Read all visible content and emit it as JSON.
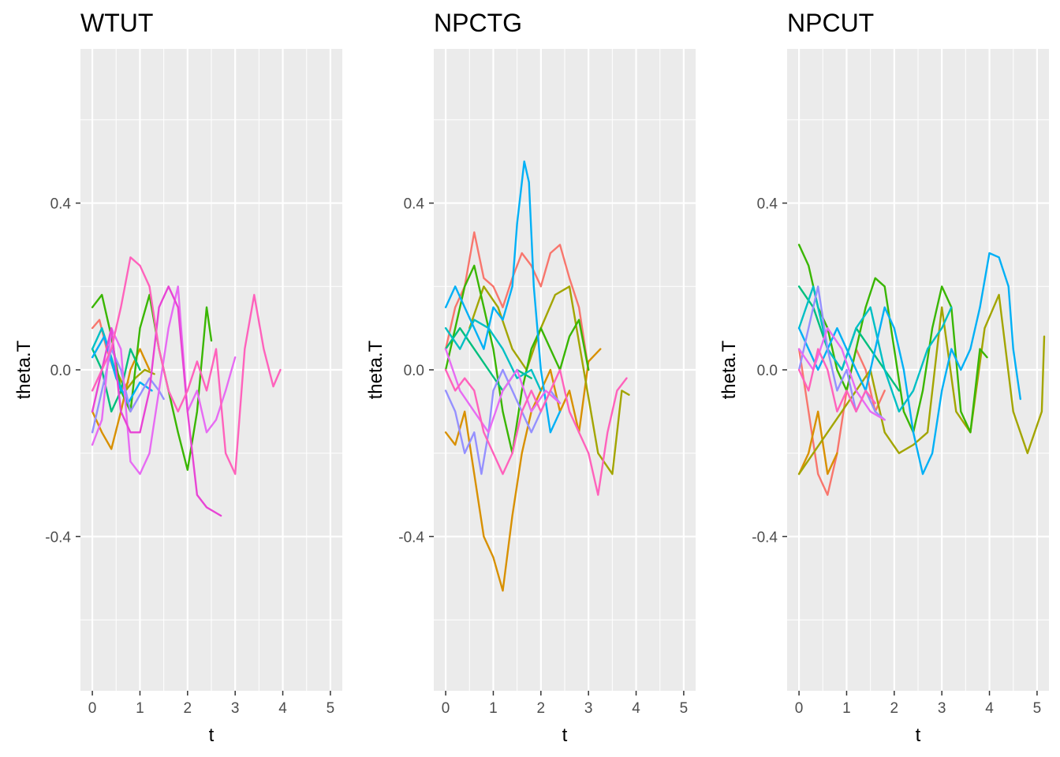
{
  "chart_data": [
    {
      "type": "line",
      "title": "WTUT",
      "xlabel": "t",
      "ylabel": "theta.T",
      "xlim": [
        -0.25,
        5.25
      ],
      "ylim": [
        -0.77,
        0.77
      ],
      "xticks": [
        0,
        1,
        2,
        3,
        4,
        5
      ],
      "yticks": [
        0.4,
        0.0,
        -0.4
      ],
      "ytick_labels": [
        "0.4",
        "0.0",
        "-0.4"
      ],
      "grid": true,
      "series": [
        {
          "color": "#F8766D",
          "x": [
            0,
            0.15,
            0.3,
            0.45,
            0.6,
            0.75
          ],
          "y": [
            0.1,
            0.12,
            0.05,
            0.0,
            -0.05,
            -0.03
          ]
        },
        {
          "color": "#D89000",
          "x": [
            0,
            0.2,
            0.4,
            0.6,
            0.8,
            1.0,
            1.2
          ],
          "y": [
            -0.1,
            -0.15,
            -0.19,
            -0.1,
            0.0,
            0.05,
            0.0
          ]
        },
        {
          "color": "#A3A500",
          "x": [
            0.5,
            0.7,
            0.9,
            1.1,
            1.3
          ],
          "y": [
            0.0,
            -0.05,
            -0.02,
            0.0,
            -0.01
          ]
        },
        {
          "color": "#39B600",
          "x": [
            0,
            0.2,
            0.4,
            0.6,
            0.8,
            1.0,
            1.2,
            1.4,
            1.6,
            1.8,
            2.0,
            2.2,
            2.4,
            2.5
          ],
          "y": [
            0.15,
            0.18,
            0.08,
            -0.05,
            -0.1,
            0.1,
            0.18,
            0.05,
            -0.05,
            -0.15,
            -0.24,
            -0.1,
            0.15,
            0.07
          ]
        },
        {
          "color": "#00BF7D",
          "x": [
            0,
            0.2,
            0.4,
            0.6,
            0.8,
            1.0
          ],
          "y": [
            0.05,
            0.0,
            -0.1,
            -0.05,
            0.05,
            0.0
          ]
        },
        {
          "color": "#00BFC4",
          "x": [
            0,
            0.2,
            0.4,
            0.6
          ],
          "y": [
            0.05,
            0.1,
            0.03,
            -0.05
          ]
        },
        {
          "color": "#00B0F6",
          "x": [
            0,
            0.25,
            0.5,
            0.75,
            1.0,
            1.25
          ],
          "y": [
            0.03,
            0.08,
            -0.02,
            -0.08,
            -0.03,
            -0.05
          ]
        },
        {
          "color": "#9590FF",
          "x": [
            0,
            0.2,
            0.4,
            0.6,
            0.8,
            1.0,
            1.2,
            1.4,
            1.5
          ],
          "y": [
            -0.15,
            -0.05,
            0.05,
            0.0,
            -0.1,
            -0.06,
            -0.02,
            -0.05,
            -0.07
          ]
        },
        {
          "color": "#E76BF3",
          "x": [
            0,
            0.2,
            0.4,
            0.6,
            0.8,
            1.0,
            1.2,
            1.4,
            1.6,
            1.8,
            2.0,
            2.2,
            2.4,
            2.6,
            2.8,
            3.0
          ],
          "y": [
            -0.18,
            -0.12,
            0.1,
            0.05,
            -0.22,
            -0.25,
            -0.2,
            -0.05,
            0.1,
            0.2,
            -0.1,
            -0.05,
            -0.15,
            -0.12,
            -0.05,
            0.03
          ]
        },
        {
          "color": "#E844D5",
          "x": [
            0,
            0.2,
            0.4,
            0.6,
            0.8,
            1.0,
            1.2,
            1.4,
            1.6,
            1.8,
            2.0,
            2.2,
            2.4,
            2.7
          ],
          "y": [
            -0.1,
            0.0,
            0.1,
            -0.1,
            -0.15,
            -0.15,
            -0.05,
            0.15,
            0.2,
            0.15,
            -0.1,
            -0.3,
            -0.33,
            -0.35
          ]
        },
        {
          "color": "#FF62BC",
          "x": [
            0,
            0.2,
            0.4,
            0.6,
            0.8,
            1.0,
            1.2,
            1.4,
            1.6,
            1.8,
            2.0,
            2.2,
            2.4,
            2.6,
            2.8,
            3.0,
            3.2,
            3.4,
            3.6,
            3.8,
            3.95
          ],
          "y": [
            -0.05,
            0.0,
            0.05,
            0.15,
            0.27,
            0.25,
            0.2,
            0.05,
            -0.05,
            -0.1,
            -0.05,
            0.02,
            -0.05,
            0.05,
            -0.2,
            -0.25,
            0.05,
            0.18,
            0.05,
            -0.04,
            0.0
          ]
        }
      ]
    },
    {
      "type": "line",
      "title": "NPCTG",
      "xlabel": "t",
      "ylabel": "theta.T",
      "xlim": [
        -0.25,
        5.25
      ],
      "ylim": [
        -0.77,
        0.77
      ],
      "xticks": [
        0,
        1,
        2,
        3,
        4,
        5
      ],
      "yticks": [
        0.4,
        0.0,
        -0.4
      ],
      "ytick_labels": [
        "0.4",
        "0.0",
        "-0.4"
      ],
      "grid": true,
      "series": [
        {
          "color": "#F8766D",
          "x": [
            0,
            0.2,
            0.4,
            0.6,
            0.8,
            1.0,
            1.2,
            1.4,
            1.6,
            1.8,
            2.0,
            2.2,
            2.4,
            2.6,
            2.8,
            3.0
          ],
          "y": [
            0.05,
            0.15,
            0.2,
            0.33,
            0.22,
            0.2,
            0.15,
            0.22,
            0.28,
            0.25,
            0.2,
            0.28,
            0.3,
            0.22,
            0.15,
            0.0
          ]
        },
        {
          "color": "#D89000",
          "x": [
            0,
            0.2,
            0.4,
            0.6,
            0.8,
            1.0,
            1.2,
            1.4,
            1.6,
            1.8,
            2.0,
            2.2,
            2.4,
            2.6,
            2.8,
            3.0,
            3.25
          ],
          "y": [
            -0.15,
            -0.18,
            -0.1,
            -0.25,
            -0.4,
            -0.45,
            -0.53,
            -0.35,
            -0.2,
            -0.1,
            -0.05,
            0.0,
            -0.1,
            -0.05,
            -0.15,
            0.02,
            0.05
          ]
        },
        {
          "color": "#A3A500",
          "x": [
            0.5,
            0.8,
            1.1,
            1.4,
            1.7,
            2.0,
            2.3,
            2.6,
            2.9,
            3.2,
            3.5,
            3.7,
            3.85
          ],
          "y": [
            0.1,
            0.2,
            0.15,
            0.05,
            0.0,
            0.1,
            0.18,
            0.2,
            0.0,
            -0.2,
            -0.25,
            -0.05,
            -0.06
          ]
        },
        {
          "color": "#39B600",
          "x": [
            0,
            0.2,
            0.4,
            0.6,
            0.8,
            1.0,
            1.2,
            1.4,
            1.6,
            1.8,
            2.0,
            2.2,
            2.4,
            2.6,
            2.8,
            3.0
          ],
          "y": [
            0.0,
            0.1,
            0.2,
            0.25,
            0.15,
            0.05,
            -0.1,
            -0.2,
            -0.05,
            0.05,
            0.1,
            0.05,
            0.0,
            0.08,
            0.12,
            0.0
          ]
        },
        {
          "color": "#00BF7D",
          "x": [
            0,
            0.3,
            0.6,
            0.9,
            1.2,
            1.5,
            1.8
          ],
          "y": [
            0.05,
            0.1,
            0.05,
            0.0,
            -0.05,
            0.0,
            -0.02
          ]
        },
        {
          "color": "#00BFC4",
          "x": [
            0,
            0.3,
            0.6,
            0.9,
            1.2,
            1.5,
            1.8,
            2.0
          ],
          "y": [
            0.1,
            0.05,
            0.12,
            0.1,
            0.05,
            -0.02,
            0.0,
            -0.05
          ]
        },
        {
          "color": "#00B0F6",
          "x": [
            0,
            0.2,
            0.4,
            0.6,
            0.8,
            1.0,
            1.2,
            1.4,
            1.5,
            1.6,
            1.65,
            1.75,
            1.85,
            2.0,
            2.2,
            2.4
          ],
          "y": [
            0.15,
            0.2,
            0.15,
            0.1,
            0.05,
            0.15,
            0.12,
            0.2,
            0.35,
            0.45,
            0.5,
            0.45,
            0.2,
            0.0,
            -0.15,
            -0.1
          ]
        },
        {
          "color": "#9590FF",
          "x": [
            0,
            0.2,
            0.4,
            0.6,
            0.75,
            0.9,
            1.0,
            1.2,
            1.4,
            1.6,
            1.8,
            2.0,
            2.2,
            2.4
          ],
          "y": [
            -0.05,
            -0.1,
            -0.2,
            -0.15,
            -0.25,
            -0.15,
            -0.05,
            0.0,
            -0.05,
            -0.1,
            -0.15,
            -0.1,
            -0.05,
            -0.08
          ]
        },
        {
          "color": "#E76BF3",
          "x": [
            0,
            0.3,
            0.6,
            0.9,
            1.2,
            1.5,
            1.8,
            2.1,
            2.4
          ],
          "y": [
            0.05,
            -0.05,
            -0.1,
            -0.15,
            -0.05,
            0.0,
            -0.1,
            -0.05,
            -0.08
          ]
        },
        {
          "color": "#FF62BC",
          "x": [
            0,
            0.2,
            0.4,
            0.6,
            0.8,
            1.0,
            1.2,
            1.4,
            1.6,
            1.8,
            2.0,
            2.2,
            2.4,
            2.6,
            2.8,
            3.0,
            3.2,
            3.4,
            3.6,
            3.8
          ],
          "y": [
            0.0,
            -0.05,
            -0.02,
            -0.05,
            -0.15,
            -0.2,
            -0.25,
            -0.2,
            -0.1,
            -0.05,
            -0.1,
            -0.05,
            0.0,
            -0.1,
            -0.15,
            -0.2,
            -0.3,
            -0.15,
            -0.05,
            -0.02
          ]
        }
      ]
    },
    {
      "type": "line",
      "title": "NPCUT",
      "xlabel": "t",
      "ylabel": "theta.T",
      "xlim": [
        -0.25,
        5.25
      ],
      "ylim": [
        -0.77,
        0.77
      ],
      "xticks": [
        0,
        1,
        2,
        3,
        4,
        5
      ],
      "yticks": [
        0.4,
        0.0,
        -0.4
      ],
      "ytick_labels": [
        "0.4",
        "0.0",
        "-0.4"
      ],
      "grid": true,
      "series": [
        {
          "color": "#F8766D",
          "x": [
            0,
            0.2,
            0.4,
            0.6,
            0.8,
            1.0,
            1.2,
            1.4,
            1.6,
            1.8
          ],
          "y": [
            0.05,
            -0.1,
            -0.25,
            -0.3,
            -0.2,
            -0.05,
            0.05,
            0.0,
            -0.1,
            -0.05
          ]
        },
        {
          "color": "#D89000",
          "x": [
            0,
            0.2,
            0.4,
            0.6,
            0.8
          ],
          "y": [
            -0.25,
            -0.2,
            -0.1,
            -0.25,
            -0.2
          ]
        },
        {
          "color": "#A3A500",
          "x": [
            0,
            0.3,
            0.6,
            0.9,
            1.2,
            1.5,
            1.8,
            2.1,
            2.4,
            2.7,
            3.0,
            3.3,
            3.6,
            3.9,
            4.2,
            4.5,
            4.8,
            5.1,
            5.15
          ],
          "y": [
            -0.25,
            -0.2,
            -0.15,
            -0.1,
            -0.05,
            0.0,
            -0.15,
            -0.2,
            -0.18,
            -0.15,
            0.15,
            -0.1,
            -0.15,
            0.1,
            0.18,
            -0.1,
            -0.2,
            -0.1,
            0.08
          ]
        },
        {
          "color": "#39B600",
          "x": [
            0,
            0.2,
            0.4,
            0.6,
            0.8,
            1.0,
            1.2,
            1.4,
            1.6,
            1.8,
            2.0,
            2.2,
            2.4,
            2.6,
            2.8,
            3.0,
            3.2,
            3.4,
            3.6,
            3.8,
            3.95
          ],
          "y": [
            0.3,
            0.25,
            0.15,
            0.1,
            0.0,
            -0.05,
            0.05,
            0.15,
            0.22,
            0.2,
            0.05,
            -0.1,
            -0.15,
            -0.05,
            0.1,
            0.2,
            0.15,
            -0.1,
            -0.15,
            0.05,
            0.03
          ]
        },
        {
          "color": "#00BF7D",
          "x": [
            0,
            0.3,
            0.6,
            0.9,
            1.2,
            1.5,
            1.8,
            2.1
          ],
          "y": [
            0.2,
            0.15,
            0.05,
            0.0,
            0.1,
            0.05,
            0.0,
            -0.05
          ]
        },
        {
          "color": "#00BFC4",
          "x": [
            0,
            0.3,
            0.6,
            0.9,
            1.2,
            1.5,
            1.8,
            2.1,
            2.4,
            2.7,
            3.0,
            3.2
          ],
          "y": [
            0.1,
            0.2,
            0.05,
            0.0,
            0.1,
            0.15,
            0.0,
            -0.1,
            -0.05,
            0.05,
            0.1,
            0.15
          ]
        },
        {
          "color": "#00B0F6",
          "x": [
            0,
            0.2,
            0.4,
            0.6,
            0.8,
            1.0,
            1.2,
            1.4,
            1.6,
            1.8,
            2.0,
            2.2,
            2.4,
            2.6,
            2.8,
            3.0,
            3.2,
            3.4,
            3.6,
            3.8,
            4.0,
            4.2,
            4.4,
            4.5,
            4.65
          ],
          "y": [
            0.1,
            0.05,
            0.0,
            0.05,
            0.1,
            0.05,
            0.0,
            -0.05,
            0.05,
            0.15,
            0.1,
            0.0,
            -0.15,
            -0.25,
            -0.2,
            -0.05,
            0.05,
            0.0,
            0.05,
            0.15,
            0.28,
            0.27,
            0.2,
            0.05,
            -0.07
          ]
        },
        {
          "color": "#9590FF",
          "x": [
            0,
            0.2,
            0.4,
            0.6,
            0.8,
            1.0,
            1.2,
            1.4,
            1.6,
            1.8
          ],
          "y": [
            0.0,
            0.1,
            0.2,
            0.05,
            -0.05,
            0.0,
            -0.1,
            -0.05,
            -0.1,
            -0.12
          ]
        },
        {
          "color": "#E76BF3",
          "x": [
            0,
            0.3,
            0.6,
            0.9,
            1.2,
            1.5,
            1.8
          ],
          "y": [
            0.05,
            0.0,
            0.1,
            0.05,
            -0.05,
            -0.1,
            -0.12
          ]
        },
        {
          "color": "#FF62BC",
          "x": [
            0,
            0.2,
            0.4,
            0.6,
            0.8,
            1.0,
            1.2,
            1.4,
            1.6
          ],
          "y": [
            0.0,
            -0.05,
            0.05,
            0.0,
            -0.1,
            -0.05,
            -0.1,
            -0.05,
            -0.08
          ]
        }
      ]
    }
  ]
}
